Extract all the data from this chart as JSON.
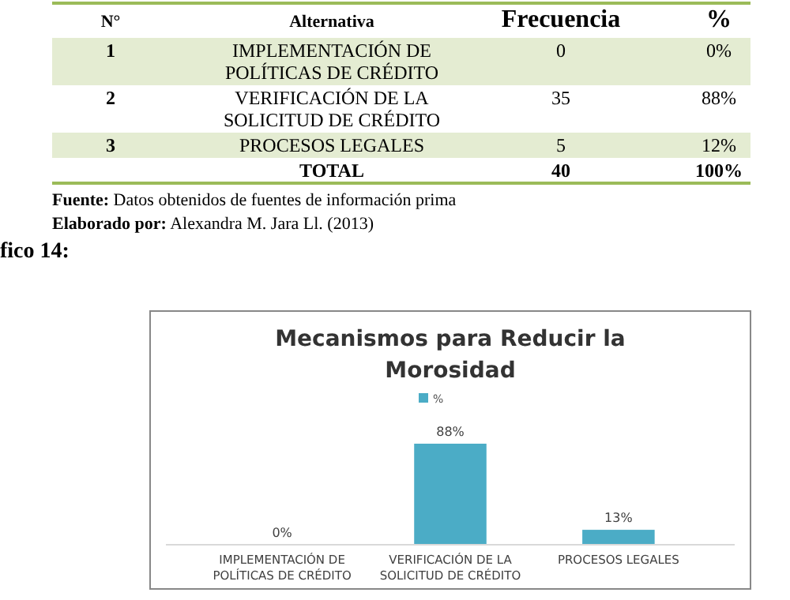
{
  "chart_data": [
    {
      "type": "other",
      "annotations": [
        "N°",
        "Alternativa",
        "Frecuencia",
        "%",
        "1",
        "IMPLEMENTACIÓN DE POLÍTICAS DE CRÉDITO",
        "0",
        "0%",
        "2",
        "VERIFICACIÓN DE LA SOLICITUD DE CRÉDITO",
        "35",
        "88%",
        "3",
        "PROCESOS LEGALES",
        "5",
        "12%",
        "TOTAL",
        "40",
        "100%",
        "Fuente: Datos obtenidos de fuentes de información prima",
        "Elaborado por: Alexandra M. Jara Ll. (2013)",
        "fico 14:"
      ]
    },
    {
      "type": "bar",
      "title": "Mecanismos para Reducir la Morosidad",
      "categories": [
        "IMPLEMENTACIÓN DE POLÍTICAS DE CRÉDITO",
        "VERIFICACIÓN DE LA SOLICITUD DE CRÉDITO",
        "PROCESOS LEGALES"
      ],
      "series": [
        {
          "name": "%",
          "color": "#4bacc6",
          "values": [
            0,
            88,
            13
          ],
          "value_labels": [
            "0%",
            "88%",
            "13%"
          ]
        }
      ],
      "legend": "top"
    }
  ]
}
